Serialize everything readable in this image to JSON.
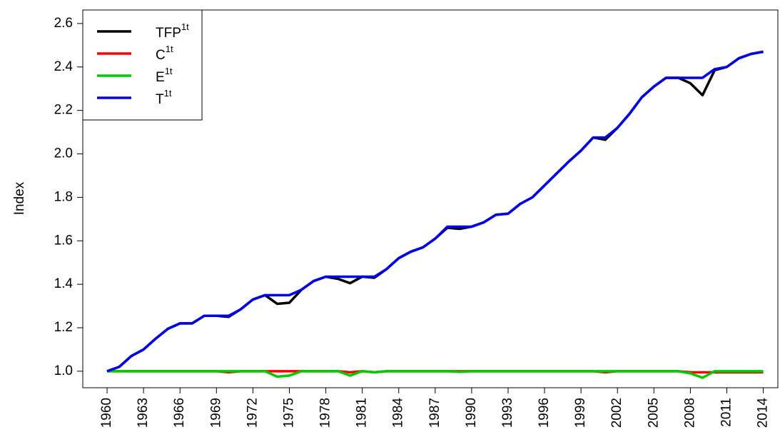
{
  "chart_data": {
    "type": "line",
    "ylabel": "Index",
    "x": [
      1960,
      1961,
      1962,
      1963,
      1964,
      1965,
      1966,
      1967,
      1968,
      1969,
      1970,
      1971,
      1972,
      1973,
      1974,
      1975,
      1976,
      1977,
      1978,
      1979,
      1980,
      1981,
      1982,
      1983,
      1984,
      1985,
      1986,
      1987,
      1988,
      1989,
      1990,
      1991,
      1992,
      1993,
      1994,
      1995,
      1996,
      1997,
      1998,
      1999,
      2000,
      2001,
      2002,
      2003,
      2004,
      2005,
      2006,
      2007,
      2008,
      2009,
      2010,
      2011,
      2012,
      2013,
      2014
    ],
    "xlim": [
      1958,
      2015.2
    ],
    "xticks": [
      1960,
      1963,
      1966,
      1969,
      1972,
      1975,
      1978,
      1981,
      1984,
      1987,
      1990,
      1993,
      1996,
      1999,
      2002,
      2005,
      2008,
      2011,
      2014
    ],
    "ylim": [
      0.924,
      2.662
    ],
    "yticks": [
      {
        "value": 1,
        "label": "1.0"
      },
      1.2,
      1.4,
      1.6,
      1.8,
      {
        "value": 2,
        "label": "2.0"
      },
      2.2,
      2.4,
      2.6
    ],
    "legend": "top-left",
    "series": [
      {
        "name": "TFP",
        "name_sup": "1t",
        "color": "#000000",
        "values": [
          1.0,
          1.02,
          1.07,
          1.1,
          1.15,
          1.195,
          1.22,
          1.22,
          1.255,
          1.255,
          1.25,
          1.285,
          1.33,
          1.35,
          1.31,
          1.315,
          1.375,
          1.415,
          1.435,
          1.425,
          1.405,
          1.435,
          1.43,
          1.47,
          1.52,
          1.55,
          1.57,
          1.61,
          1.66,
          1.655,
          1.665,
          1.685,
          1.72,
          1.725,
          1.77,
          1.8,
          1.855,
          1.91,
          1.965,
          2.015,
          2.075,
          2.065,
          2.12,
          2.185,
          2.26,
          2.31,
          2.35,
          2.35,
          2.325,
          2.27,
          2.385,
          2.4,
          2.44,
          2.46,
          2.47
        ]
      },
      {
        "name": "C",
        "name_sup": "1t",
        "color": "#ff0000",
        "values": [
          1,
          1,
          1,
          1,
          1,
          1,
          1,
          1,
          1,
          1,
          0.995,
          1,
          1,
          1,
          1,
          1,
          1,
          1,
          1,
          1,
          0.995,
          1,
          0.995,
          1,
          1,
          1,
          1,
          1,
          1,
          1,
          1,
          1,
          1,
          1,
          1,
          1,
          1,
          1,
          1,
          1,
          1,
          0.995,
          1,
          1,
          1,
          1,
          1,
          1,
          0.995,
          0.995,
          0.995,
          0.995,
          0.995,
          0.995,
          0.995
        ]
      },
      {
        "name": "E",
        "name_sup": "1t",
        "color": "#00cc00",
        "values": [
          1,
          1,
          1,
          1,
          1,
          1,
          1,
          1,
          1,
          1,
          1,
          1,
          1,
          1,
          0.975,
          0.98,
          1,
          1,
          1,
          1,
          0.98,
          1,
          0.995,
          1,
          1,
          1,
          1,
          1,
          1,
          0.997,
          1,
          1,
          1,
          1,
          1,
          1,
          1,
          1,
          1,
          1,
          1,
          1,
          1,
          1,
          1,
          1,
          1,
          1,
          0.99,
          0.97,
          1,
          1,
          1,
          1,
          1
        ]
      },
      {
        "name": "T",
        "name_sup": "1t",
        "color": "#0000ee",
        "values": [
          1.0,
          1.02,
          1.07,
          1.1,
          1.15,
          1.195,
          1.22,
          1.22,
          1.255,
          1.255,
          1.255,
          1.285,
          1.33,
          1.35,
          1.35,
          1.35,
          1.375,
          1.415,
          1.435,
          1.435,
          1.435,
          1.435,
          1.435,
          1.47,
          1.52,
          1.55,
          1.57,
          1.61,
          1.665,
          1.665,
          1.665,
          1.685,
          1.72,
          1.725,
          1.77,
          1.8,
          1.855,
          1.91,
          1.965,
          2.015,
          2.075,
          2.075,
          2.12,
          2.185,
          2.26,
          2.31,
          2.35,
          2.35,
          2.35,
          2.35,
          2.39,
          2.4,
          2.44,
          2.46,
          2.47
        ]
      }
    ]
  }
}
